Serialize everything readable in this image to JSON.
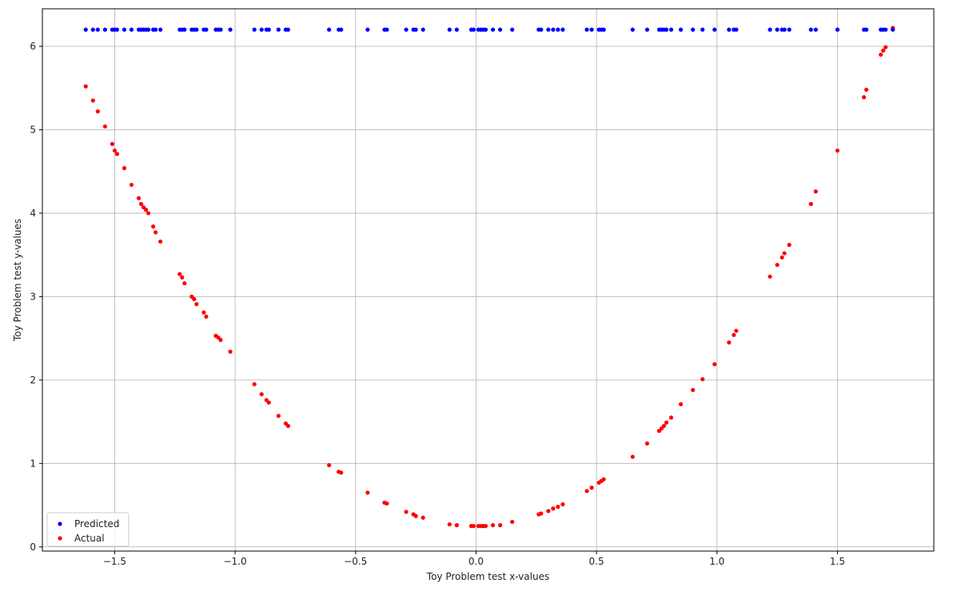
{
  "chart_data": {
    "type": "scatter",
    "title": "",
    "xlabel": "Toy Problem test x-values",
    "ylabel": "Toy Problem test y-values",
    "xlim": [
      -1.8,
      1.9
    ],
    "ylim": [
      -0.05,
      6.45
    ],
    "xticks": [
      -1.5,
      -1.0,
      -0.5,
      0.0,
      0.5,
      1.0,
      1.5
    ],
    "xtick_labels": [
      "−1.5",
      "−1.0",
      "−0.5",
      "0.0",
      "0.5",
      "1.0",
      "1.5"
    ],
    "yticks": [
      0,
      1,
      2,
      3,
      4,
      5,
      6
    ],
    "ytick_labels": [
      "0",
      "1",
      "2",
      "3",
      "4",
      "5",
      "6"
    ],
    "grid": true,
    "legend_position": "lower-left",
    "x": [
      -1.62,
      -1.59,
      -1.57,
      -1.54,
      -1.51,
      -1.5,
      -1.49,
      -1.46,
      -1.43,
      -1.4,
      -1.39,
      -1.38,
      -1.37,
      -1.36,
      -1.34,
      -1.33,
      -1.31,
      -1.23,
      -1.22,
      -1.21,
      -1.18,
      -1.17,
      -1.16,
      -1.13,
      -1.12,
      -1.08,
      -1.07,
      -1.06,
      -1.02,
      -0.92,
      -0.89,
      -0.87,
      -0.86,
      -0.82,
      -0.79,
      -0.78,
      -0.61,
      -0.57,
      -0.56,
      -0.45,
      -0.38,
      -0.37,
      -0.29,
      -0.26,
      -0.25,
      -0.22,
      -0.11,
      -0.08,
      -0.02,
      -0.01,
      0.01,
      0.02,
      0.03,
      0.04,
      0.07,
      0.1,
      0.15,
      0.26,
      0.27,
      0.3,
      0.32,
      0.34,
      0.36,
      0.46,
      0.48,
      0.51,
      0.52,
      0.53,
      0.65,
      0.71,
      0.76,
      0.77,
      0.78,
      0.79,
      0.81,
      0.85,
      0.9,
      0.94,
      0.99,
      1.05,
      1.07,
      1.08,
      1.22,
      1.25,
      1.27,
      1.28,
      1.3,
      1.39,
      1.41,
      1.5,
      1.61,
      1.62,
      1.68,
      1.69,
      1.7,
      1.73
    ],
    "series": [
      {
        "name": "Predicted",
        "color": "#0000ff",
        "y": "constant",
        "values": [
          6.2,
          6.2,
          6.2,
          6.2,
          6.2,
          6.2,
          6.2,
          6.2,
          6.2,
          6.2,
          6.2,
          6.2,
          6.2,
          6.2,
          6.2,
          6.2,
          6.2,
          6.2,
          6.2,
          6.2,
          6.2,
          6.2,
          6.2,
          6.2,
          6.2,
          6.2,
          6.2,
          6.2,
          6.2,
          6.2,
          6.2,
          6.2,
          6.2,
          6.2,
          6.2,
          6.2,
          6.2,
          6.2,
          6.2,
          6.2,
          6.2,
          6.2,
          6.2,
          6.2,
          6.2,
          6.2,
          6.2,
          6.2,
          6.2,
          6.2,
          6.2,
          6.2,
          6.2,
          6.2,
          6.2,
          6.2,
          6.2,
          6.2,
          6.2,
          6.2,
          6.2,
          6.2,
          6.2,
          6.2,
          6.2,
          6.2,
          6.2,
          6.2,
          6.2,
          6.2,
          6.2,
          6.2,
          6.2,
          6.2,
          6.2,
          6.2,
          6.2,
          6.2,
          6.2,
          6.2,
          6.2,
          6.2,
          6.2,
          6.2,
          6.2,
          6.2,
          6.2,
          6.2,
          6.2,
          6.2,
          6.2,
          6.2,
          6.2,
          6.2,
          6.2,
          6.2
        ]
      },
      {
        "name": "Actual",
        "color": "#ff0000",
        "values": [
          5.52,
          5.35,
          5.22,
          5.04,
          4.83,
          4.75,
          4.71,
          4.54,
          4.34,
          4.18,
          4.11,
          4.07,
          4.04,
          4.0,
          3.84,
          3.77,
          3.66,
          3.27,
          3.23,
          3.16,
          3.0,
          2.97,
          2.91,
          2.81,
          2.76,
          2.53,
          2.51,
          2.48,
          2.34,
          1.95,
          1.83,
          1.76,
          1.73,
          1.57,
          1.48,
          1.45,
          0.98,
          0.9,
          0.89,
          0.65,
          0.53,
          0.52,
          0.42,
          0.39,
          0.37,
          0.35,
          0.27,
          0.26,
          0.25,
          0.25,
          0.25,
          0.25,
          0.25,
          0.25,
          0.26,
          0.26,
          0.3,
          0.39,
          0.4,
          0.43,
          0.46,
          0.48,
          0.51,
          0.67,
          0.71,
          0.77,
          0.79,
          0.81,
          1.08,
          1.24,
          1.39,
          1.42,
          1.45,
          1.49,
          1.55,
          1.71,
          1.88,
          2.01,
          2.19,
          2.45,
          2.54,
          2.59,
          3.24,
          3.38,
          3.47,
          3.52,
          3.62,
          4.11,
          4.26,
          4.75,
          5.39,
          5.48,
          5.9,
          5.95,
          5.99,
          6.22
        ]
      }
    ]
  }
}
